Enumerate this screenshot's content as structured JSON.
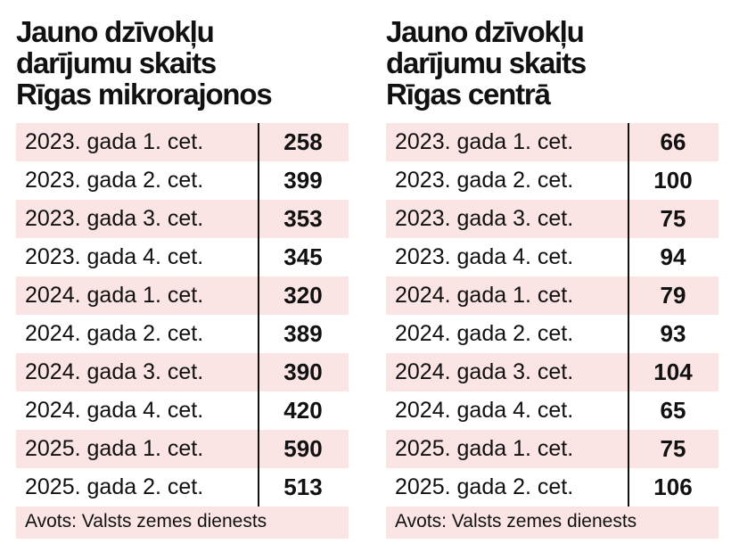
{
  "tables": [
    {
      "title_lines": [
        "Jauno dzīvokļu",
        "darījumu skaits",
        "Rīgas mikrorajonos"
      ],
      "rows": [
        [
          "2023. gada 1. cet.",
          258
        ],
        [
          "2023. gada 2. cet.",
          399
        ],
        [
          "2023. gada 3. cet.",
          353
        ],
        [
          "2023. gada 4. cet.",
          345
        ],
        [
          "2024. gada 1. cet.",
          320
        ],
        [
          "2024. gada 2. cet.",
          389
        ],
        [
          "2024. gada 3. cet.",
          390
        ],
        [
          "2024. gada 4. cet.",
          420
        ],
        [
          "2025. gada 1. cet.",
          590
        ],
        [
          "2025. gada 2. cet.",
          513
        ]
      ],
      "source": "Avots: Valsts zemes dienests"
    },
    {
      "title_lines": [
        "Jauno dzīvokļu",
        "darījumu skaits",
        "Rīgas centrā"
      ],
      "rows": [
        [
          "2023. gada 1. cet.",
          66
        ],
        [
          "2023. gada 2. cet.",
          100
        ],
        [
          "2023. gada 3. cet.",
          75
        ],
        [
          "2023. gada 4. cet.",
          94
        ],
        [
          "2024. gada 1. cet.",
          79
        ],
        [
          "2024. gada 2. cet.",
          93
        ],
        [
          "2024. gada 3. cet.",
          104
        ],
        [
          "2024. gada 4. cet.",
          65
        ],
        [
          "2025. gada 1. cet.",
          75
        ],
        [
          "2025. gada 2. cet.",
          106
        ]
      ],
      "source": "Avots: Valsts zemes dienests"
    }
  ]
}
